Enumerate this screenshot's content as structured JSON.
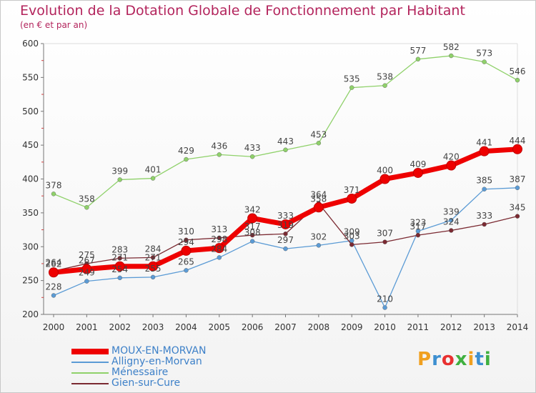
{
  "header": {
    "title": "Evolution de la Dotation Globale de Fonctionnement par Habitant",
    "subtitle": "(en € et par an)"
  },
  "logo": {
    "text": "Proxiti",
    "colors": [
      "#f0a020",
      "#3d8fd0",
      "#e83030",
      "#40b040",
      "#f0a020",
      "#3d8fd0",
      "#40b040"
    ]
  },
  "chart_data": {
    "type": "line",
    "x": [
      "2000",
      "2001",
      "2002",
      "2003",
      "2004",
      "2005",
      "2006",
      "2007",
      "2008",
      "2009",
      "2010",
      "2011",
      "2012",
      "2013",
      "2014"
    ],
    "ylim": [
      200,
      600
    ],
    "yticks": [
      200,
      250,
      300,
      350,
      400,
      450,
      500,
      550,
      600
    ],
    "grid": false,
    "legend_position": "bottom-left",
    "series": [
      {
        "name": "Ménessaire",
        "color": "#8fd16a",
        "values": [
          378,
          358,
          399,
          401,
          429,
          436,
          433,
          443,
          453,
          535,
          538,
          577,
          582,
          573,
          546
        ]
      },
      {
        "name": "Alligny-en-Morvan",
        "color": "#5b9bd5",
        "values": [
          228,
          249,
          254,
          255,
          265,
          284,
          308,
          297,
          302,
          309,
          210,
          323,
          339,
          385,
          387
        ]
      },
      {
        "name": "Gien-sur-Cure",
        "color": "#7b2a32",
        "values": [
          264,
          275,
          283,
          284,
          310,
          313,
          317,
          319,
          364,
          303,
          307,
          317,
          324,
          333,
          345
        ]
      },
      {
        "name": "MOUX-EN-MORVAN",
        "color": "#ee0000",
        "values": [
          262,
          267,
          271,
          271,
          294,
          298,
          342,
          333,
          358,
          371,
          400,
          409,
          420,
          441,
          444
        ]
      }
    ],
    "legend_order": [
      "MOUX-EN-MORVAN",
      "Alligny-en-Morvan",
      "Ménessaire",
      "Gien-sur-Cure"
    ]
  }
}
